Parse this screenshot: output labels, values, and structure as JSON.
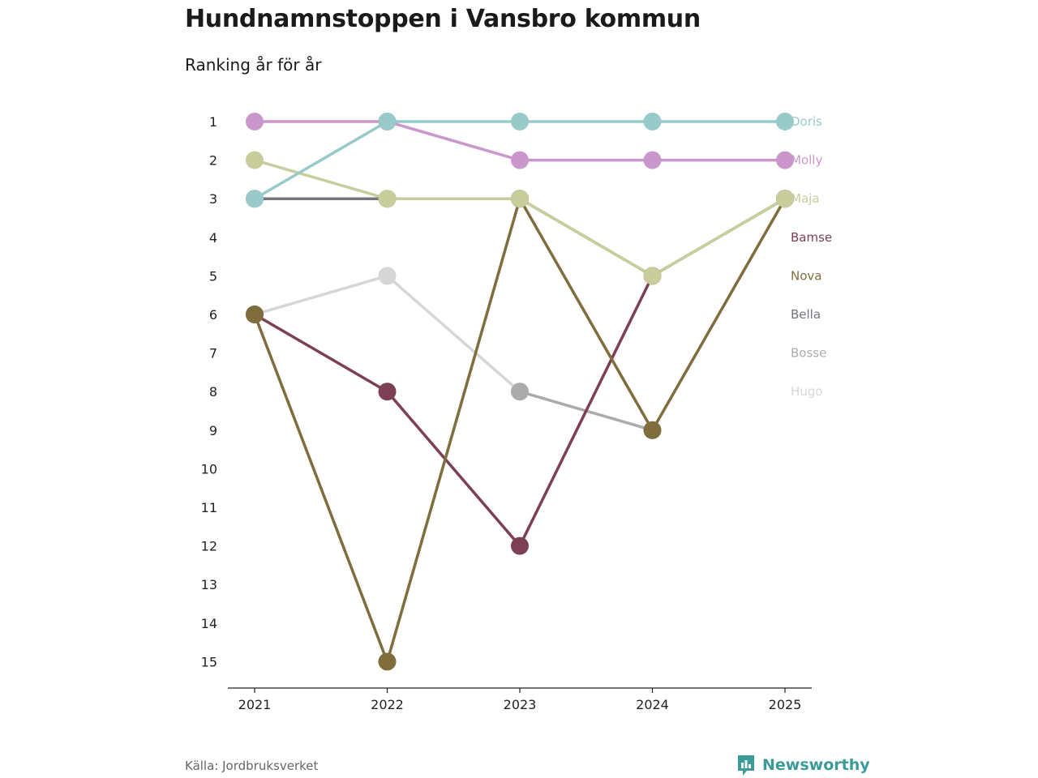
{
  "title": "Hundnamnstoppen i Vansbro kommun",
  "subtitle": "Ranking år för år",
  "source": "Källa: Jordbruksverket",
  "brand": "Newsworthy",
  "brand_icon": "bar-chart-icon",
  "chart_data": {
    "type": "line",
    "subtype": "bump",
    "x": [
      "2021",
      "2022",
      "2023",
      "2024",
      "2025"
    ],
    "y_ticks": [
      "1",
      "2",
      "3",
      "4",
      "5",
      "6",
      "7",
      "8",
      "9",
      "10",
      "11",
      "12",
      "13",
      "14",
      "15"
    ],
    "ylim": [
      1,
      15
    ],
    "y_inverted": true,
    "xlabel": "",
    "ylabel": "",
    "series": [
      {
        "name": "Hugo",
        "color": "#d6d6d6",
        "values": [
          6,
          5,
          8,
          null,
          null
        ]
      },
      {
        "name": "Bosse",
        "color": "#ababab",
        "values": [
          null,
          null,
          8,
          9,
          null
        ]
      },
      {
        "name": "Bamse",
        "color": "#7c3f55",
        "values": [
          6,
          8,
          12,
          5,
          null
        ]
      },
      {
        "name": "Nova",
        "color": "#7f6d3d",
        "values": [
          6,
          15,
          3,
          9,
          3
        ]
      },
      {
        "name": "Bella",
        "color": "#75757f",
        "values": [
          3,
          3,
          3,
          5,
          3
        ]
      },
      {
        "name": "Maja",
        "color": "#c9cc9b",
        "values": [
          2,
          3,
          3,
          5,
          3
        ]
      },
      {
        "name": "Molly",
        "color": "#c997cb",
        "values": [
          1,
          1,
          2,
          2,
          2
        ]
      },
      {
        "name": "Doris",
        "color": "#97cac8",
        "values": [
          3,
          1,
          1,
          1,
          1
        ]
      }
    ],
    "end_labels": [
      {
        "name": "Doris",
        "rank": 1,
        "color": "#97cac8"
      },
      {
        "name": "Molly",
        "rank": 2,
        "color": "#c997cb"
      },
      {
        "name": "Maja",
        "rank": 3,
        "color": "#c9cc9b"
      },
      {
        "name": "Bamse",
        "rank": 4,
        "color": "#7c3f55"
      },
      {
        "name": "Nova",
        "rank": 5,
        "color": "#7f6d3d"
      },
      {
        "name": "Bella",
        "rank": 6,
        "color": "#75757f"
      },
      {
        "name": "Bosse",
        "rank": 7,
        "color": "#ababab"
      },
      {
        "name": "Hugo",
        "rank": 8,
        "color": "#d6d6d6"
      }
    ]
  }
}
